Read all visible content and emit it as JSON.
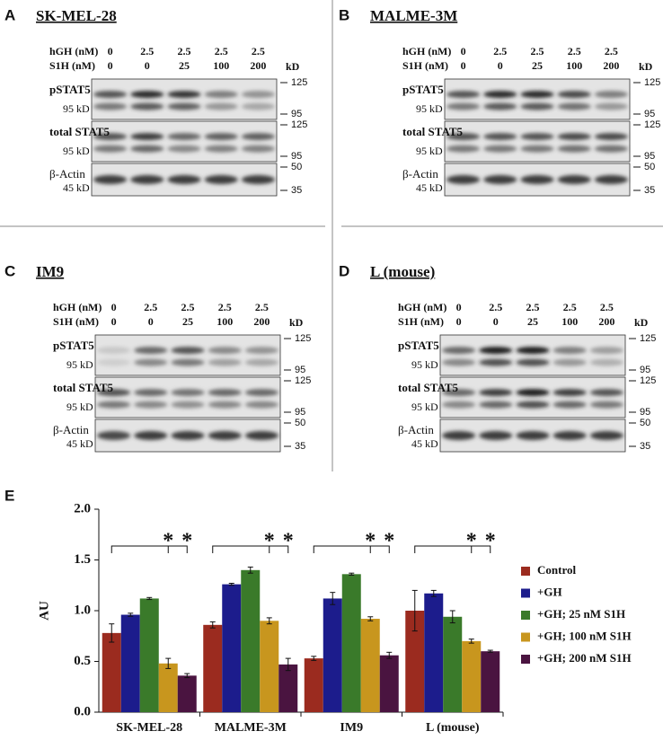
{
  "panels": [
    {
      "letter": "A",
      "title": "SK-MEL-28",
      "hgh_label": "hGH (nM)",
      "hgh": [
        "0",
        "2.5",
        "2.5",
        "2.5",
        "2.5"
      ],
      "s1h_label": "S1H (nM)",
      "s1h": [
        "0",
        "0",
        "25",
        "100",
        "200"
      ],
      "kd_label": "kD",
      "blots": [
        {
          "name": "pSTAT5",
          "size": "95 kD",
          "markers": [
            "125",
            "95"
          ]
        },
        {
          "name": "total STAT5",
          "size": "95 kD",
          "markers": [
            "125",
            "95"
          ]
        },
        {
          "name": "β-Actin",
          "size": "45 kD",
          "markers": [
            "50",
            "35"
          ]
        }
      ]
    },
    {
      "letter": "B",
      "title": "MALME-3M",
      "hgh_label": "hGH (nM)",
      "hgh": [
        "0",
        "2.5",
        "2.5",
        "2.5",
        "2.5"
      ],
      "s1h_label": "S1H (nM)",
      "s1h": [
        "0",
        "0",
        "25",
        "100",
        "200"
      ],
      "kd_label": "kD",
      "blots": [
        {
          "name": "pSTAT5",
          "size": "95 kD",
          "markers": [
            "125",
            "95"
          ]
        },
        {
          "name": "total STAT5",
          "size": "95 kD",
          "markers": [
            "125",
            "95"
          ]
        },
        {
          "name": "β-Actin",
          "size": "45 kD",
          "markers": [
            "50",
            "35"
          ]
        }
      ]
    },
    {
      "letter": "C",
      "title": "IM9",
      "hgh_label": "hGH (nM)",
      "hgh": [
        "0",
        "2.5",
        "2.5",
        "2.5",
        "2.5"
      ],
      "s1h_label": "S1H (nM)",
      "s1h": [
        "0",
        "0",
        "25",
        "100",
        "200"
      ],
      "kd_label": "kD",
      "blots": [
        {
          "name": "pSTAT5",
          "size": "95 kD",
          "markers": [
            "125",
            "95"
          ]
        },
        {
          "name": "total STAT5",
          "size": "95 kD",
          "markers": [
            "125",
            "95"
          ]
        },
        {
          "name": "β-Actin",
          "size": "45 kD",
          "markers": [
            "50",
            "35"
          ]
        }
      ]
    },
    {
      "letter": "D",
      "title": "L (mouse)",
      "hgh_label": "hGH (nM)",
      "hgh": [
        "0",
        "2.5",
        "2.5",
        "2.5",
        "2.5"
      ],
      "s1h_label": "S1H (nM)",
      "s1h": [
        "0",
        "0",
        "25",
        "100",
        "200"
      ],
      "kd_label": "kD",
      "blots": [
        {
          "name": "pSTAT5",
          "size": "95 kD",
          "markers": [
            "125",
            "95"
          ]
        },
        {
          "name": "total STAT5",
          "size": "95 kD",
          "markers": [
            "125",
            "95"
          ]
        },
        {
          "name": "β-Actin",
          "size": "45 kD",
          "markers": [
            "50",
            "35"
          ]
        }
      ]
    }
  ],
  "chart_data": {
    "type": "bar",
    "letter": "E",
    "ylabel": "AU",
    "categories": [
      "SK-MEL-28",
      "MALME-3M",
      "IM9",
      "L (mouse)"
    ],
    "ylim": [
      0,
      2.0
    ],
    "yticks": [
      {
        "value": 0,
        "label": "0.0"
      },
      {
        "value": 0.5,
        "label": "0.5"
      },
      {
        "value": 1,
        "label": "1.0"
      },
      {
        "value": 1.5,
        "label": "1.5"
      },
      {
        "value": 2,
        "label": "2.0"
      }
    ],
    "annotations": [
      "*",
      "*"
    ],
    "series": [
      {
        "name": "Control",
        "color": "#9b2b1f",
        "values": [
          0.78,
          0.86,
          0.53,
          1.0
        ],
        "errors": [
          0.09,
          0.03,
          0.02,
          0.2
        ]
      },
      {
        "name": "+GH",
        "color": "#1c1c8c",
        "values": [
          0.96,
          1.26,
          1.12,
          1.17
        ],
        "errors": [
          0.015,
          0.01,
          0.06,
          0.03
        ]
      },
      {
        "name": "+GH; 25 nM S1H",
        "color": "#3a7a2a",
        "values": [
          1.12,
          1.4,
          1.36,
          0.94
        ],
        "errors": [
          0.01,
          0.03,
          0.01,
          0.06
        ]
      },
      {
        "name": "+GH; 100 nM S1H",
        "color": "#c8961e",
        "values": [
          0.48,
          0.9,
          0.92,
          0.7
        ],
        "errors": [
          0.05,
          0.03,
          0.02,
          0.02
        ]
      },
      {
        "name": "+GH; 200 nM S1H",
        "color": "#4a1440",
        "values": [
          0.36,
          0.47,
          0.56,
          0.6
        ],
        "errors": [
          0.02,
          0.06,
          0.03,
          0.01
        ]
      }
    ]
  }
}
